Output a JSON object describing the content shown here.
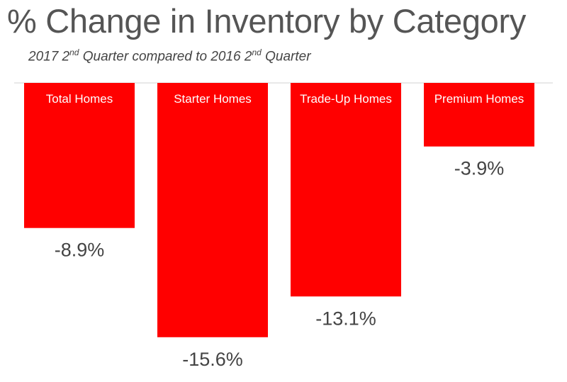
{
  "chart_data": {
    "type": "bar",
    "title": "% Change in Inventory by Category",
    "subtitle": {
      "part1": "2017 2",
      "sup1": "nd",
      "part2": " Quarter compared to 2016 2",
      "sup2": "nd",
      "part3": " Quarter"
    },
    "categories": [
      "Total Homes",
      "Starter Homes",
      "Trade-Up Homes",
      "Premium Homes"
    ],
    "values": [
      -8.9,
      -15.6,
      -13.1,
      -3.9
    ],
    "value_labels": [
      "-8.9%",
      "-15.6%",
      "-13.1%",
      "-3.9%"
    ],
    "ylim": [
      -15.6,
      0
    ],
    "bar_color": "#ff0000",
    "axis_color": "#d0d0d0",
    "category_label_color": "#ffffff",
    "value_label_color": "#444444",
    "grid": false
  }
}
